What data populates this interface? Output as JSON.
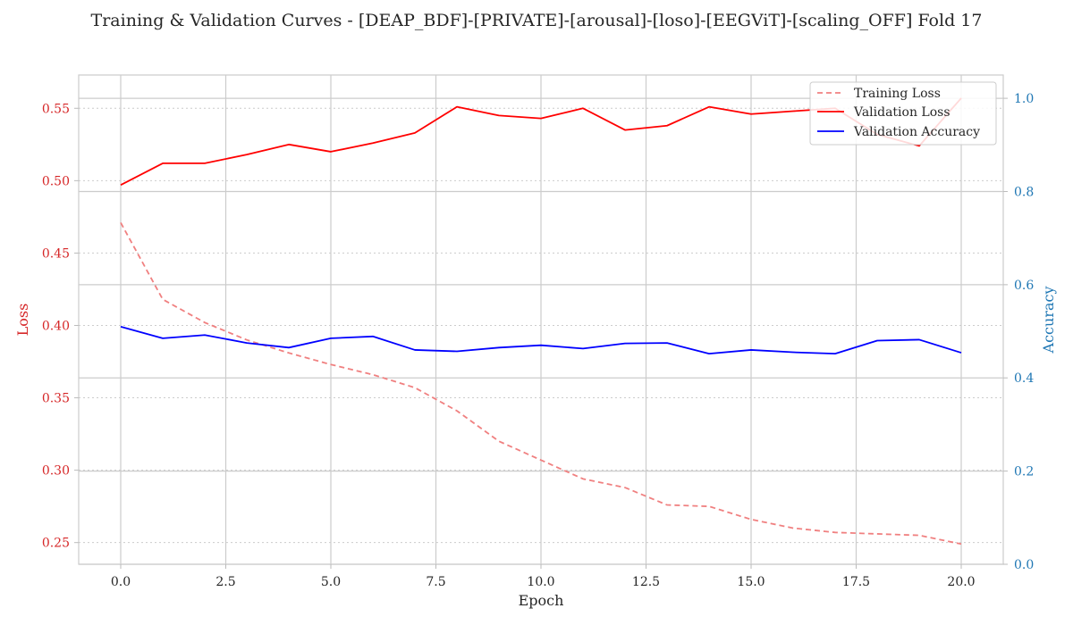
{
  "chart_data": {
    "type": "line",
    "title": "Training & Validation Curves - [DEAP_BDF]-[PRIVATE]-[arousal]-[loso]-[EEGViT]-[scaling_OFF] Fold 17",
    "xlabel": "Epoch",
    "ylabel_left": "Loss",
    "ylabel_right": "Accuracy",
    "xlim": [
      -1,
      21
    ],
    "ylim_left": [
      0.235,
      0.573
    ],
    "ylim_right": [
      0.0,
      1.05
    ],
    "x_ticks": [
      0.0,
      2.5,
      5.0,
      7.5,
      10.0,
      12.5,
      15.0,
      17.5,
      20.0
    ],
    "x_tick_labels": [
      "0.0",
      "2.5",
      "5.0",
      "7.5",
      "10.0",
      "12.5",
      "15.0",
      "17.5",
      "20.0"
    ],
    "left_ticks": [
      0.25,
      0.3,
      0.35,
      0.4,
      0.45,
      0.5,
      0.55
    ],
    "left_tick_labels": [
      "0.25",
      "0.30",
      "0.35",
      "0.40",
      "0.45",
      "0.50",
      "0.55"
    ],
    "right_ticks": [
      0.0,
      0.2,
      0.4,
      0.6,
      0.8,
      1.0
    ],
    "right_tick_labels": [
      "0.0",
      "0.2",
      "0.4",
      "0.6",
      "0.8",
      "1.0"
    ],
    "grid": true,
    "legend_position": "top-right",
    "x": [
      0,
      1,
      2,
      3,
      4,
      5,
      6,
      7,
      8,
      9,
      10,
      11,
      12,
      13,
      14,
      15,
      16,
      17,
      18,
      19,
      20
    ],
    "series": [
      {
        "name": "Training Loss",
        "axis": "left",
        "style": "dashed",
        "color": "#f08080",
        "values": [
          0.471,
          0.418,
          0.402,
          0.39,
          0.381,
          0.373,
          0.366,
          0.357,
          0.341,
          0.32,
          0.307,
          0.294,
          0.288,
          0.276,
          0.275,
          0.266,
          0.26,
          0.257,
          0.256,
          0.255,
          0.249
        ]
      },
      {
        "name": "Validation Loss",
        "axis": "left",
        "style": "solid",
        "color": "#ff0000",
        "values": [
          0.497,
          0.512,
          0.512,
          0.518,
          0.525,
          0.52,
          0.526,
          0.533,
          0.551,
          0.545,
          0.543,
          0.55,
          0.535,
          0.538,
          0.551,
          0.546,
          0.548,
          0.55,
          0.532,
          0.524,
          0.557
        ]
      },
      {
        "name": "Validation Accuracy",
        "axis": "right",
        "style": "solid",
        "color": "#0000ff",
        "values": [
          0.51,
          0.485,
          0.492,
          0.475,
          0.465,
          0.485,
          0.489,
          0.46,
          0.457,
          0.465,
          0.47,
          0.463,
          0.474,
          0.475,
          0.452,
          0.46,
          0.455,
          0.452,
          0.48,
          0.482,
          0.454
        ]
      }
    ]
  },
  "colors": {
    "left_axis": "#d62728",
    "right_axis": "#1f77b4",
    "grid": "#cccccc",
    "text": "#262626"
  }
}
